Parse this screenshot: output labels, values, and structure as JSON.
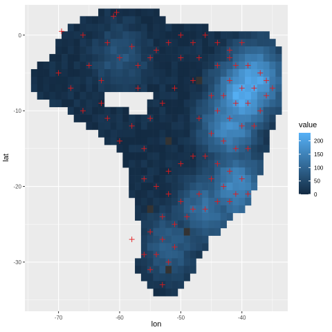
{
  "chart_data": {
    "type": "heatmap",
    "title": "",
    "xlabel": "lon",
    "ylabel": "lat",
    "xlim": [
      -75.5,
      -32.5
    ],
    "ylim": [
      -36.5,
      4.0
    ],
    "x_ticks": [
      -70,
      -60,
      -50,
      -40
    ],
    "x_tick_labels": [
      "-70",
      "-60",
      "-50",
      "-40"
    ],
    "y_ticks": [
      0,
      -10,
      -20,
      -30
    ],
    "y_tick_labels": [
      "0",
      "-10",
      "-20",
      "-30"
    ],
    "grid": true,
    "cell_size_deg": 1,
    "legend": {
      "title": "value",
      "placement": "right",
      "breaks": [
        0,
        50,
        100,
        150,
        200
      ],
      "labels": [
        "0",
        "50",
        "100",
        "150",
        "200"
      ],
      "range": [
        0,
        230
      ],
      "low_color": "#132B43",
      "high_color": "#56B1F7"
    },
    "grid_region": {
      "description_rows_lat": "row latitude centers with lon span [start,end] of filled cells",
      "rows": [
        [
          3,
          -63,
          -54
        ],
        [
          2,
          -66,
          -53
        ],
        [
          1,
          -68,
          -46
        ],
        [
          0,
          -69,
          -36
        ],
        [
          -1,
          -70,
          -35
        ],
        [
          -2,
          -70,
          -34
        ],
        [
          -3,
          -71,
          -34
        ],
        [
          -4,
          -73,
          -34
        ],
        [
          -5,
          -74,
          -34
        ],
        [
          -6,
          -74,
          -34
        ],
        [
          -7,
          -74,
          -34
        ],
        [
          -8,
          -73,
          -34
        ],
        [
          -9,
          -71,
          -34
        ],
        [
          -10,
          -68,
          -34
        ],
        [
          -11,
          -67,
          -35
        ],
        [
          -12,
          -65,
          -35
        ],
        [
          -13,
          -63,
          -36
        ],
        [
          -14,
          -62,
          -36
        ],
        [
          -15,
          -60,
          -36
        ],
        [
          -16,
          -59,
          -37
        ],
        [
          -17,
          -59,
          -37
        ],
        [
          -18,
          -58,
          -37
        ],
        [
          -19,
          -58,
          -38
        ],
        [
          -20,
          -58,
          -38
        ],
        [
          -21,
          -58,
          -39
        ],
        [
          -22,
          -57,
          -39
        ],
        [
          -23,
          -57,
          -40
        ],
        [
          -24,
          -57,
          -42
        ],
        [
          -25,
          -56,
          -43
        ],
        [
          -26,
          -56,
          -44
        ],
        [
          -27,
          -56,
          -46
        ],
        [
          -28,
          -56,
          -46
        ],
        [
          -29,
          -56,
          -47
        ],
        [
          -30,
          -57,
          -48
        ],
        [
          -31,
          -57,
          -48
        ],
        [
          -32,
          -56,
          -49
        ],
        [
          -33,
          -55,
          -50
        ],
        [
          -34,
          -54,
          -51
        ]
      ],
      "holes": [
        [
          -9,
          -62,
          -56
        ],
        [
          -8,
          -62,
          -55
        ],
        [
          -10,
          -58,
          -56
        ]
      ]
    },
    "high_value_zones": [
      {
        "lon": -40,
        "lat": -8,
        "value": 220
      },
      {
        "lon": -38,
        "lat": -6,
        "value": 210
      },
      {
        "lon": -42,
        "lat": -12,
        "value": 170
      },
      {
        "lon": -41,
        "lat": -20,
        "value": 160
      },
      {
        "lon": -46,
        "lat": -23,
        "value": 120
      },
      {
        "lon": -52,
        "lat": -28,
        "value": 90
      },
      {
        "lon": -60,
        "lat": -3,
        "value": 70
      }
    ],
    "missing_cells": [
      [
        -47,
        -6
      ],
      [
        -52,
        -14
      ],
      [
        -55,
        -23
      ],
      [
        -49,
        -26
      ],
      [
        -52,
        -31
      ]
    ],
    "points": {
      "marker": "+",
      "color": "#E41A1C",
      "coordinates": [
        [
          -60.5,
          3
        ],
        [
          -61,
          2.5
        ],
        [
          -69.5,
          0.5
        ],
        [
          -66,
          0
        ],
        [
          -62,
          -1
        ],
        [
          -58,
          -1.5
        ],
        [
          -54,
          -2
        ],
        [
          -52,
          -1
        ],
        [
          -50,
          0
        ],
        [
          -48,
          -1
        ],
        [
          -46,
          0
        ],
        [
          -44,
          -1
        ],
        [
          -42,
          -2
        ],
        [
          -40,
          -1
        ],
        [
          -70,
          -5
        ],
        [
          -68,
          -7
        ],
        [
          -65,
          -4
        ],
        [
          -63,
          -6
        ],
        [
          -60,
          -3
        ],
        [
          -57,
          -4
        ],
        [
          -55,
          -3
        ],
        [
          -50,
          -3
        ],
        [
          -47,
          -3
        ],
        [
          -44,
          -4
        ],
        [
          -42,
          -3
        ],
        [
          -41,
          -4
        ],
        [
          -39,
          -4
        ],
        [
          -37,
          -5
        ],
        [
          -36,
          -6
        ],
        [
          -38,
          -7
        ],
        [
          -40,
          -7
        ],
        [
          -42,
          -6
        ],
        [
          -43,
          -8
        ],
        [
          -41,
          -9
        ],
        [
          -39,
          -9
        ],
        [
          -37,
          -10
        ],
        [
          -36,
          -8
        ],
        [
          -35,
          -7
        ],
        [
          -44,
          -10
        ],
        [
          -42,
          -11
        ],
        [
          -40,
          -12
        ],
        [
          -38,
          -12
        ],
        [
          -45,
          -13
        ],
        [
          -43,
          -14
        ],
        [
          -41,
          -15
        ],
        [
          -39,
          -15
        ],
        [
          -46,
          -16
        ],
        [
          -44,
          -17
        ],
        [
          -42,
          -18
        ],
        [
          -40,
          -19
        ],
        [
          -45,
          -19
        ],
        [
          -43,
          -20
        ],
        [
          -41,
          -21
        ],
        [
          -39,
          -21
        ],
        [
          -47,
          -21
        ],
        [
          -44,
          -22
        ],
        [
          -42,
          -22
        ],
        [
          -48,
          -23
        ],
        [
          -46,
          -23
        ],
        [
          -50,
          -22
        ],
        [
          -52,
          -21
        ],
        [
          -54,
          -20
        ],
        [
          -56,
          -19
        ],
        [
          -52,
          -18
        ],
        [
          -50,
          -17
        ],
        [
          -48,
          -16
        ],
        [
          -53,
          -24
        ],
        [
          -51,
          -25
        ],
        [
          -49,
          -24
        ],
        [
          -55,
          -26
        ],
        [
          -53,
          -27
        ],
        [
          -51,
          -28
        ],
        [
          -54,
          -29
        ],
        [
          -52,
          -30
        ],
        [
          -55,
          -31
        ],
        [
          -53,
          -33
        ],
        [
          -56,
          -29
        ],
        [
          -58,
          -27
        ],
        [
          -60,
          -14
        ],
        [
          -58,
          -12
        ],
        [
          -55,
          -11
        ],
        [
          -56,
          -15
        ],
        [
          -63,
          -9
        ],
        [
          -66,
          -10
        ],
        [
          -62,
          -11
        ],
        [
          -47,
          -11
        ],
        [
          -45,
          -8
        ],
        [
          -48,
          -6
        ],
        [
          -51,
          -7
        ],
        [
          -53,
          -9
        ],
        [
          -57,
          -7
        ]
      ]
    }
  }
}
